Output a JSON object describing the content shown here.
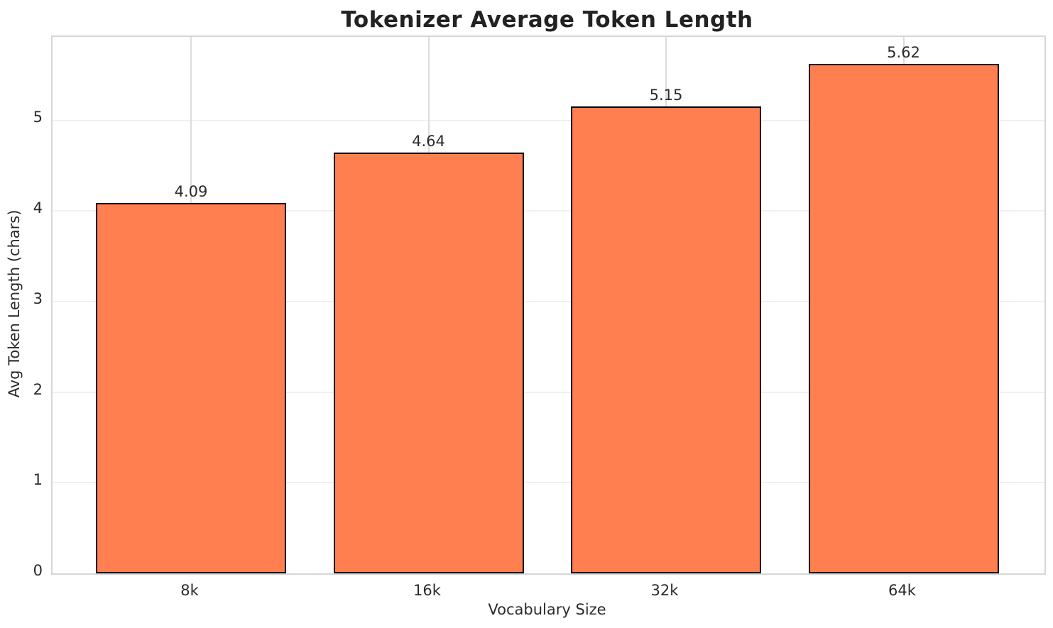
{
  "chart_data": {
    "type": "bar",
    "title": "Tokenizer Average Token Length",
    "xlabel": "Vocabulary Size",
    "ylabel": "Avg Token Length (chars)",
    "categories": [
      "8k",
      "16k",
      "32k",
      "64k"
    ],
    "values": [
      4.09,
      4.64,
      5.15,
      5.62
    ],
    "value_labels": [
      "4.09",
      "4.64",
      "5.15",
      "5.62"
    ],
    "yticks": [
      0,
      1,
      2,
      3,
      4,
      5
    ],
    "ylim": [
      0,
      5.92
    ],
    "grid": "both",
    "legend": "none",
    "colors": {
      "bar_fill": "#FF7F50",
      "bar_edge": "#000000",
      "grid_horizontal": "#F0F0F0",
      "grid_vertical": "#DCDCDC",
      "spine": "#D6D6D6",
      "text": "#2B2B2B",
      "background": "#FFFFFF"
    }
  }
}
